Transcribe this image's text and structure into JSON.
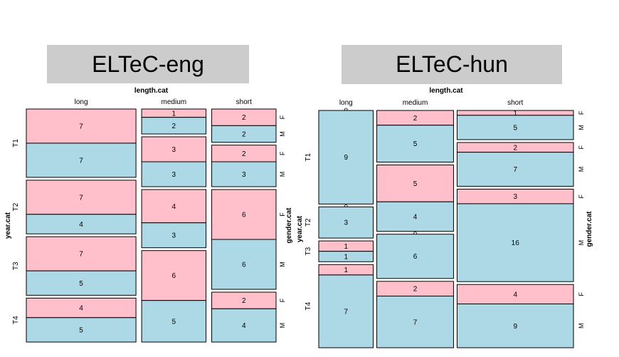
{
  "colors": {
    "female": "#FFC0CB",
    "male": "#ADD8E6",
    "title_bg": "#CCCCCC",
    "border": "#000000"
  },
  "chart_data": [
    {
      "type": "mosaic",
      "title": "ELTeC-eng",
      "col_var": "length.cat",
      "row_var": "year.cat",
      "sub_var": "gender.cat",
      "columns": [
        "long",
        "medium",
        "short"
      ],
      "rows": [
        "T1",
        "T2",
        "T3",
        "T4"
      ],
      "subrows": [
        "F",
        "M"
      ],
      "counts": {
        "long": [
          [
            7,
            7
          ],
          [
            7,
            4
          ],
          [
            7,
            5
          ],
          [
            4,
            5
          ]
        ],
        "medium": [
          [
            1,
            2
          ],
          [
            3,
            3
          ],
          [
            4,
            3
          ],
          [
            6,
            5
          ]
        ],
        "short": [
          [
            2,
            2
          ],
          [
            2,
            3
          ],
          [
            6,
            6
          ],
          [
            2,
            4
          ]
        ]
      }
    },
    {
      "type": "mosaic",
      "title": "ELTeC-hun",
      "col_var": "length.cat",
      "row_var": "year.cat",
      "sub_var": "gender.cat",
      "columns": [
        "long",
        "medium",
        "short"
      ],
      "rows": [
        "T1",
        "T2",
        "T3",
        "T4"
      ],
      "subrows": [
        "F",
        "M"
      ],
      "counts": {
        "long": [
          [
            0,
            9
          ],
          [
            0,
            3
          ],
          [
            1,
            1
          ],
          [
            1,
            7
          ]
        ],
        "medium": [
          [
            2,
            5
          ],
          [
            5,
            4
          ],
          [
            0,
            6
          ],
          [
            2,
            7
          ]
        ],
        "short": [
          [
            1,
            5
          ],
          [
            2,
            7
          ],
          [
            3,
            16
          ],
          [
            4,
            9
          ]
        ]
      }
    }
  ]
}
